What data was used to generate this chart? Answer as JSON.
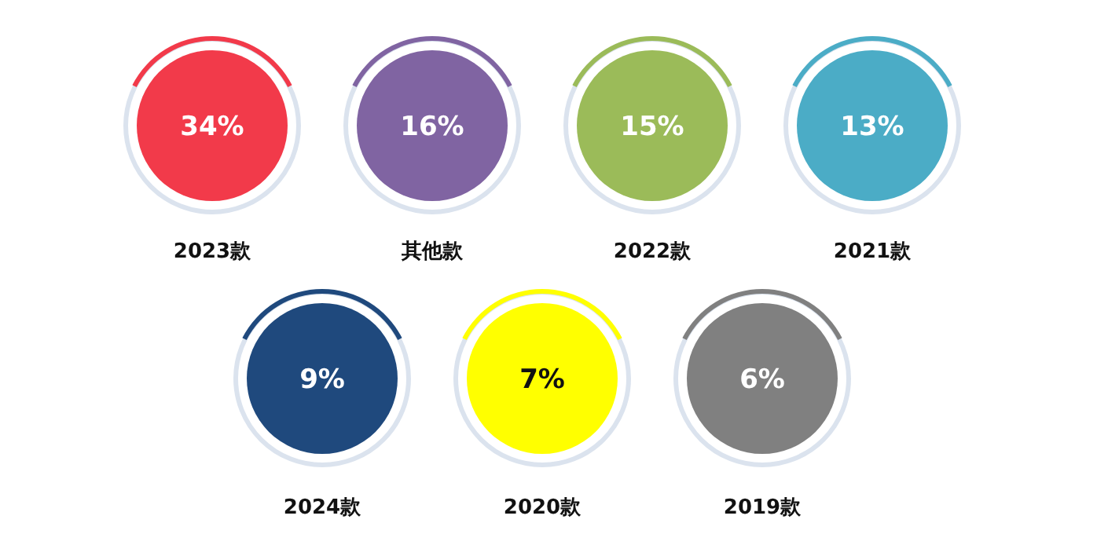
{
  "chart_data": {
    "type": "other",
    "categories": [
      "2023款",
      "其他款",
      "2022款",
      "2021款",
      "2024款",
      "2020款",
      "2019款"
    ],
    "values": [
      34,
      16,
      15,
      13,
      9,
      7,
      6
    ],
    "value_labels": [
      "34%",
      "16%",
      "15%",
      "13%",
      "9%",
      "7%",
      "6%"
    ],
    "colors": [
      "#f23a4a",
      "#8064a2",
      "#9bbb59",
      "#4bacc6",
      "#1f497d",
      "#ffff00",
      "#808080"
    ]
  }
}
